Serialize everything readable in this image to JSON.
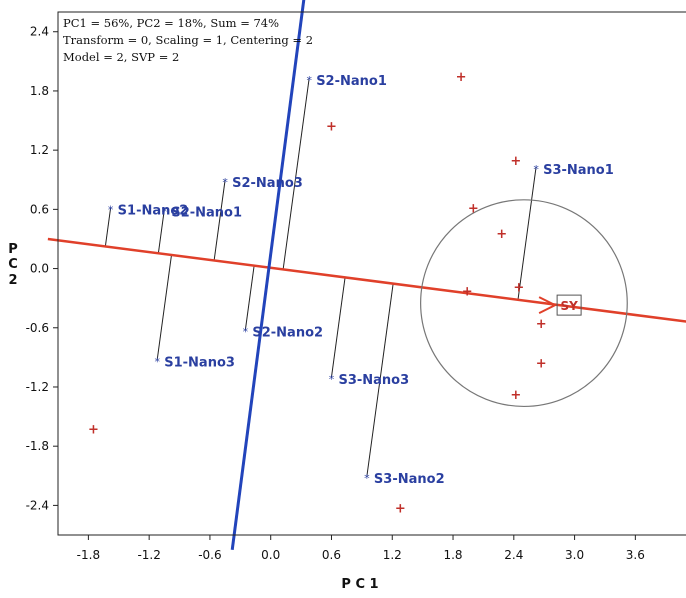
{
  "chart_data": {
    "type": "scatter",
    "xlabel": "P C 1",
    "ylabel": "P C 2",
    "xlim": [
      -2.1,
      4.1
    ],
    "ylim": [
      -2.7,
      2.6
    ],
    "x_ticks": [
      -1.8,
      -1.2,
      -0.6,
      0.0,
      0.6,
      1.2,
      1.8,
      2.4,
      3.0,
      3.6
    ],
    "y_ticks": [
      2.4,
      1.8,
      1.2,
      0.6,
      0.0,
      -0.6,
      -1.2,
      -1.8,
      -2.4
    ],
    "info_lines": [
      "PC1 = 56%, PC2 = 18%, Sum = 74%",
      "Transform = 0, Scaling = 1, Centering = 2",
      "Model = 2, SVP = 2"
    ],
    "objects": [
      {
        "label": "S2-Nano1",
        "x": 0.38,
        "y": 1.93
      },
      {
        "label": "S2-Nano3",
        "x": -0.45,
        "y": 0.9
      },
      {
        "label": "S1-Nano2",
        "x": -1.58,
        "y": 0.62
      },
      {
        "label": "S2-Nano1",
        "x": -1.05,
        "y": 0.6
      },
      {
        "label": "S3-Nano1",
        "x": 2.62,
        "y": 1.03
      },
      {
        "label": "S2-Nano2",
        "x": -0.25,
        "y": -0.62
      },
      {
        "label": "S1-Nano3",
        "x": -1.12,
        "y": -0.92
      },
      {
        "label": "S3-Nano3",
        "x": 0.6,
        "y": -1.1
      },
      {
        "label": "S3-Nano2",
        "x": 0.95,
        "y": -2.1
      }
    ],
    "variables": [
      {
        "x": 1.88,
        "y": 1.95
      },
      {
        "x": 0.6,
        "y": 1.45
      },
      {
        "x": 2.42,
        "y": 1.1
      },
      {
        "x": 2.0,
        "y": 0.62
      },
      {
        "x": 2.28,
        "y": 0.36
      },
      {
        "x": 1.94,
        "y": -0.22
      },
      {
        "x": 2.45,
        "y": -0.18
      },
      {
        "x": 2.67,
        "y": -0.55
      },
      {
        "x": 2.67,
        "y": -0.95
      },
      {
        "x": 2.42,
        "y": -1.27
      },
      {
        "x": -1.75,
        "y": -1.62
      },
      {
        "x": 1.28,
        "y": -2.42
      }
    ],
    "sy_label": "SY",
    "sy_point": {
      "x": 2.85,
      "y": -0.35
    },
    "pc1_axis_line": [
      [
        -2.2,
        0.3
      ],
      [
        4.2,
        -0.55
      ]
    ],
    "pc2_axis_line": [
      [
        0.33,
        2.75
      ],
      [
        -0.38,
        -2.85
      ]
    ],
    "circle": {
      "cx": 2.5,
      "cy": -0.35,
      "r": 1.02
    },
    "colors": {
      "pc1_line": "#e0402a",
      "pc2_line": "#2244bb",
      "object": "#2a3fa0",
      "variable": "#c0302a",
      "circle": "#777777"
    }
  }
}
